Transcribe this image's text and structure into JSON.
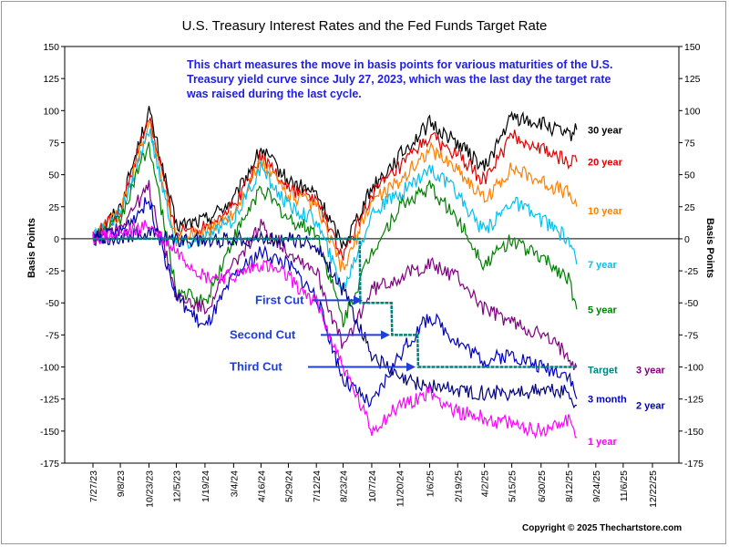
{
  "chart_data": {
    "type": "line",
    "title": "U.S. Treasury Interest Rates and the Fed Funds Target Rate",
    "annotation": "This chart measures the move in basis points for various maturities of the U.S. Treasury yield curve since July 27, 2023, which was the last day the target rate was raised during the last cycle.",
    "ylabel_left": "Basis Points",
    "ylabel_right": "Basis Points",
    "ylim": [
      -175,
      150
    ],
    "y_ticks": [
      150,
      125,
      100,
      75,
      50,
      25,
      0,
      -25,
      -50,
      -75,
      -100,
      -125,
      -150,
      -175
    ],
    "x_ticks": [
      "7/27/23",
      "9/8/23",
      "10/23/23",
      "12/5/23",
      "1/19/24",
      "3/4/24",
      "4/16/24",
      "5/29/24",
      "7/12/24",
      "8/23/24",
      "10/7/24",
      "11/20/24",
      "1/6/25",
      "2/19/25",
      "4/2/25",
      "5/15/25",
      "6/30/25",
      "8/12/25",
      "9/24/25",
      "11/6/25",
      "12/22/25"
    ],
    "grid": false,
    "series": [
      {
        "name": "30 year",
        "color": "#000000",
        "x": [
          "7/27/23",
          "9/8/23",
          "10/23/23",
          "12/5/23",
          "1/19/24",
          "3/4/24",
          "4/16/24",
          "5/29/24",
          "7/12/24",
          "8/23/24",
          "10/7/24",
          "11/20/24",
          "1/6/25",
          "2/19/25",
          "4/2/25",
          "5/15/25",
          "6/30/25",
          "8/12/25",
          "8/25/25"
        ],
        "values": [
          0,
          25,
          100,
          10,
          15,
          30,
          70,
          45,
          35,
          -5,
          40,
          65,
          90,
          75,
          55,
          95,
          90,
          80,
          85
        ]
      },
      {
        "name": "20 year",
        "color": "#e00000",
        "x": [
          "7/27/23",
          "9/8/23",
          "10/23/23",
          "12/5/23",
          "1/19/24",
          "3/4/24",
          "4/16/24",
          "5/29/24",
          "7/12/24",
          "8/23/24",
          "10/7/24",
          "11/20/24",
          "1/6/25",
          "2/19/25",
          "4/2/25",
          "5/15/25",
          "6/30/25",
          "8/12/25",
          "8/25/25"
        ],
        "values": [
          0,
          22,
          95,
          5,
          10,
          25,
          65,
          40,
          30,
          -15,
          35,
          55,
          80,
          65,
          45,
          80,
          70,
          60,
          60
        ]
      },
      {
        "name": "10 year",
        "color": "#ff7f00",
        "x": [
          "7/27/23",
          "9/8/23",
          "10/23/23",
          "12/5/23",
          "1/19/24",
          "3/4/24",
          "4/16/24",
          "5/29/24",
          "7/12/24",
          "8/23/24",
          "10/7/24",
          "11/20/24",
          "1/6/25",
          "2/19/25",
          "4/2/25",
          "5/15/25",
          "6/30/25",
          "8/12/25",
          "8/25/25"
        ],
        "values": [
          0,
          20,
          90,
          0,
          5,
          20,
          60,
          35,
          25,
          -25,
          30,
          45,
          70,
          55,
          30,
          55,
          45,
          35,
          25
        ]
      },
      {
        "name": "7 year",
        "color": "#00c0f0",
        "x": [
          "7/27/23",
          "9/8/23",
          "10/23/23",
          "12/5/23",
          "1/19/24",
          "3/4/24",
          "4/16/24",
          "5/29/24",
          "7/12/24",
          "8/23/24",
          "10/7/24",
          "11/20/24",
          "1/6/25",
          "2/19/25",
          "4/2/25",
          "5/15/25",
          "6/30/25",
          "8/12/25",
          "8/25/25"
        ],
        "values": [
          0,
          18,
          85,
          -5,
          0,
          15,
          55,
          25,
          15,
          -40,
          20,
          35,
          55,
          35,
          5,
          30,
          15,
          0,
          -20
        ]
      },
      {
        "name": "5 year",
        "color": "#008000",
        "x": [
          "7/27/23",
          "9/8/23",
          "10/23/23",
          "12/5/23",
          "1/19/24",
          "3/4/24",
          "4/16/24",
          "5/29/24",
          "7/12/24",
          "8/23/24",
          "10/7/24",
          "11/20/24",
          "1/6/25",
          "2/19/25",
          "4/2/25",
          "5/15/25",
          "6/30/25",
          "8/12/25",
          "8/25/25"
        ],
        "values": [
          0,
          15,
          75,
          -40,
          -50,
          0,
          40,
          15,
          5,
          -65,
          -10,
          25,
          40,
          15,
          -20,
          0,
          -15,
          -30,
          -55
        ]
      },
      {
        "name": "3 year",
        "color": "#800080",
        "x": [
          "7/27/23",
          "9/8/23",
          "10/23/23",
          "12/5/23",
          "1/19/24",
          "3/4/24",
          "4/16/24",
          "5/29/24",
          "7/12/24",
          "8/23/24",
          "10/7/24",
          "11/20/24",
          "1/6/25",
          "2/19/25",
          "4/2/25",
          "5/15/25",
          "6/30/25",
          "8/12/25",
          "8/25/25"
        ],
        "values": [
          0,
          10,
          40,
          -45,
          -55,
          -20,
          10,
          -10,
          -25,
          -85,
          -40,
          -30,
          -20,
          -30,
          -55,
          -65,
          -75,
          -90,
          -100
        ]
      },
      {
        "name": "2 year",
        "color": "#0000c0",
        "x": [
          "7/27/23",
          "9/8/23",
          "10/23/23",
          "12/5/23",
          "1/19/24",
          "3/4/24",
          "4/16/24",
          "5/29/24",
          "7/12/24",
          "8/23/24",
          "10/7/24",
          "11/20/24",
          "1/6/25",
          "2/19/25",
          "4/2/25",
          "5/15/25",
          "6/30/25",
          "8/12/25",
          "8/25/25"
        ],
        "values": [
          0,
          5,
          30,
          -45,
          -70,
          -30,
          -10,
          -20,
          -45,
          -110,
          -130,
          -90,
          -60,
          -80,
          -95,
          -90,
          -100,
          -105,
          -125
        ]
      },
      {
        "name": "3 month",
        "color": "#000080",
        "x": [
          "7/27/23",
          "9/8/23",
          "10/23/23",
          "12/5/23",
          "1/19/24",
          "3/4/24",
          "4/16/24",
          "5/29/24",
          "7/12/24",
          "8/23/24",
          "10/7/24",
          "11/20/24",
          "1/6/25",
          "2/19/25",
          "4/2/25",
          "5/15/25",
          "6/30/25",
          "8/12/25",
          "8/25/25"
        ],
        "values": [
          0,
          2,
          5,
          0,
          -2,
          0,
          0,
          0,
          -5,
          -40,
          -90,
          -110,
          -115,
          -118,
          -120,
          -120,
          -118,
          -120,
          -130
        ]
      },
      {
        "name": "1 year",
        "color": "#ff00ff",
        "x": [
          "7/27/23",
          "9/8/23",
          "10/23/23",
          "12/5/23",
          "1/19/24",
          "3/4/24",
          "4/16/24",
          "5/29/24",
          "7/12/24",
          "8/23/24",
          "10/7/24",
          "11/20/24",
          "1/6/25",
          "2/19/25",
          "4/2/25",
          "5/15/25",
          "6/30/25",
          "8/12/25",
          "8/25/25"
        ],
        "values": [
          0,
          3,
          10,
          -10,
          -30,
          -30,
          -20,
          -30,
          -50,
          -100,
          -150,
          -130,
          -120,
          -135,
          -140,
          -145,
          -150,
          -140,
          -155
        ]
      },
      {
        "name": "Target",
        "color": "#008080",
        "x": [
          "7/27/23",
          "9/18/24",
          "9/19/24",
          "11/7/24",
          "11/8/24",
          "12/18/24",
          "12/19/24",
          "8/25/25"
        ],
        "values": [
          0,
          0,
          -50,
          -50,
          -75,
          -75,
          -100,
          -100
        ]
      }
    ],
    "series_labels": [
      {
        "text": "30 year",
        "color": "#000000",
        "y": 85
      },
      {
        "text": "20 year",
        "color": "#e00000",
        "y": 60
      },
      {
        "text": "10 year",
        "color": "#ff7f00",
        "y": 22
      },
      {
        "text": "7 year",
        "color": "#00c0f0",
        "y": -20
      },
      {
        "text": "5 year",
        "color": "#008000",
        "y": -55
      },
      {
        "text": "Target",
        "color": "#008080",
        "y": -102
      },
      {
        "text": "3 year",
        "color": "#800080",
        "y": -102
      },
      {
        "text": "3 month",
        "color": "#0000c0",
        "y": -125
      },
      {
        "text": "2 year",
        "color": "#0000c0",
        "y": -130
      },
      {
        "text": "1 year",
        "color": "#ff00ff",
        "y": -158
      }
    ],
    "cut_annotations": [
      {
        "text": "First Cut",
        "y": -48
      },
      {
        "text": "Second Cut",
        "y": -75
      },
      {
        "text": "Third Cut",
        "y": -100
      }
    ]
  },
  "copyright": "Copyright © 2025 Thechartstore.com"
}
